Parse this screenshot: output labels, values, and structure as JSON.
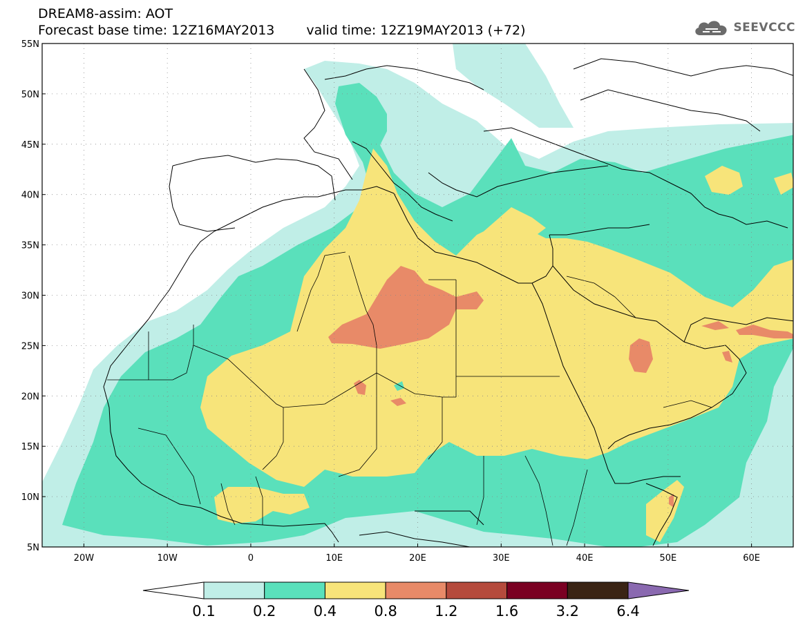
{
  "header": {
    "line1": "DREAM8-assim: AOT",
    "base_label": "Forecast base time: 12Z16MAY2013",
    "valid_label": "valid time: 12Z19MAY2013 (+72)"
  },
  "brand": {
    "name": "SEEVCCC",
    "icon": "cloud-logo-icon"
  },
  "map": {
    "lon_range": [
      -25,
      65
    ],
    "lat_range": [
      5,
      55
    ],
    "grid": "dotted",
    "lat_ticks": [
      {
        "value": 55,
        "label": "55N"
      },
      {
        "value": 50,
        "label": "50N"
      },
      {
        "value": 45,
        "label": "45N"
      },
      {
        "value": 40,
        "label": "40N"
      },
      {
        "value": 35,
        "label": "35N"
      },
      {
        "value": 30,
        "label": "30N"
      },
      {
        "value": 25,
        "label": "25N"
      },
      {
        "value": 20,
        "label": "20N"
      },
      {
        "value": 15,
        "label": "15N"
      },
      {
        "value": 10,
        "label": "10N"
      },
      {
        "value": 5,
        "label": "5N"
      }
    ],
    "lon_ticks": [
      {
        "value": -20,
        "label": "20W"
      },
      {
        "value": -10,
        "label": "10W"
      },
      {
        "value": 0,
        "label": "0"
      },
      {
        "value": 10,
        "label": "10E"
      },
      {
        "value": 20,
        "label": "20E"
      },
      {
        "value": 30,
        "label": "30E"
      },
      {
        "value": 40,
        "label": "40E"
      },
      {
        "value": 50,
        "label": "50E"
      },
      {
        "value": 60,
        "label": "60E"
      }
    ]
  },
  "colorbar": {
    "colors": [
      "#ffffff",
      "#c0eee7",
      "#5ae0bb",
      "#f7e47a",
      "#e88a68",
      "#b54a3c",
      "#7a0022",
      "#3a2414",
      "#8a69b0"
    ],
    "labels": [
      "0.1",
      "0.2",
      "0.4",
      "0.8",
      "1.2",
      "1.6",
      "3.2",
      "6.4"
    ]
  }
}
